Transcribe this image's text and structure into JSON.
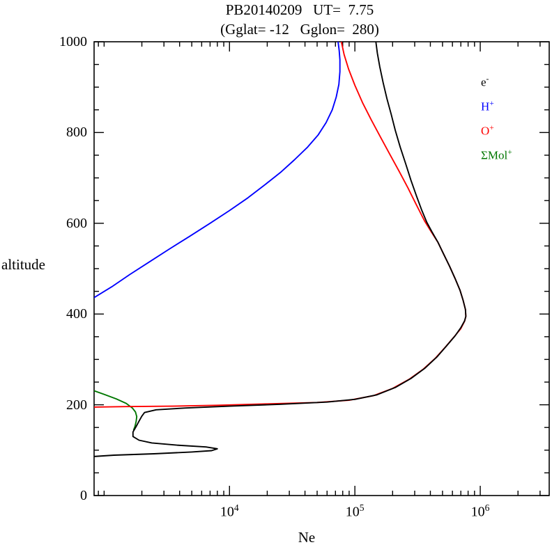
{
  "chart": {
    "title": "PB20140209   UT=  7.75",
    "subtitle": "(Gglat= -12   Gglon=  280)",
    "xlabel": "Ne",
    "ylabel": "altitude"
  },
  "legend": {
    "items": [
      {
        "name": "electron",
        "base": "e",
        "sup": "-",
        "color": "#000000"
      },
      {
        "name": "h-plus",
        "base": "H",
        "sup": "+",
        "color": "#0000ff"
      },
      {
        "name": "o-plus",
        "base": "O",
        "sup": "+",
        "color": "#ff0000"
      },
      {
        "name": "mol-plus",
        "base": "ΣMol",
        "sup": "+",
        "color": "#007700"
      }
    ]
  },
  "chart_data": {
    "type": "line",
    "x_scale": "log",
    "title": "PB20140209  UT= 7.75",
    "subtitle": "(Gglat= -12  Gglon= 280)",
    "xlabel": "Ne",
    "ylabel": "altitude",
    "xlog_range": [
      2.92,
      6.55
    ],
    "ylim": [
      0,
      1000
    ],
    "grid": false,
    "legend_position": "upper right inside",
    "x_major_ticks": [
      {
        "value": 10000,
        "base": "10",
        "sup": "4"
      },
      {
        "value": 100000,
        "base": "10",
        "sup": "5"
      },
      {
        "value": 1000000,
        "base": "10",
        "sup": "6"
      }
    ],
    "y_major_ticks": [
      0,
      200,
      400,
      600,
      800,
      1000
    ],
    "series": [
      {
        "name": "sum-molecular-ions",
        "label": "ΣMol+",
        "color": "#007700",
        "points": [
          [
            830,
            231
          ],
          [
            1000,
            223
          ],
          [
            1250,
            213
          ],
          [
            1500,
            203
          ],
          [
            1680,
            193
          ],
          [
            1780,
            184
          ],
          [
            1820,
            174
          ],
          [
            1800,
            163
          ],
          [
            1760,
            152
          ],
          [
            1720,
            145
          ]
        ]
      },
      {
        "name": "h-plus",
        "label": "H+",
        "color": "#0000ff",
        "points": [
          [
            830,
            436
          ],
          [
            1150,
            460
          ],
          [
            1600,
            487
          ],
          [
            2300,
            515
          ],
          [
            3300,
            543
          ],
          [
            4800,
            571
          ],
          [
            7000,
            600
          ],
          [
            10000,
            628
          ],
          [
            14000,
            656
          ],
          [
            19000,
            684
          ],
          [
            25500,
            712
          ],
          [
            33000,
            740
          ],
          [
            42000,
            768
          ],
          [
            51000,
            795
          ],
          [
            59000,
            822
          ],
          [
            66000,
            850
          ],
          [
            71000,
            878
          ],
          [
            74500,
            906
          ],
          [
            76000,
            934
          ],
          [
            76000,
            960
          ],
          [
            75000,
            980
          ],
          [
            73500,
            1000
          ]
        ]
      },
      {
        "name": "o-plus",
        "label": "O+",
        "color": "#ff0000",
        "points": [
          [
            830,
            195
          ],
          [
            1500,
            196
          ],
          [
            3500,
            197
          ],
          [
            8000,
            199
          ],
          [
            20000,
            202
          ],
          [
            50000,
            205
          ],
          [
            90000,
            210
          ],
          [
            140000,
            220
          ],
          [
            200000,
            236
          ],
          [
            270000,
            256
          ],
          [
            350000,
            278
          ],
          [
            440000,
            303
          ],
          [
            530000,
            328
          ],
          [
            620000,
            350
          ],
          [
            700000,
            368
          ],
          [
            750000,
            384
          ],
          [
            768000,
            395
          ],
          [
            762000,
            410
          ],
          [
            730000,
            430
          ],
          [
            690000,
            452
          ],
          [
            630000,
            478
          ],
          [
            570000,
            505
          ],
          [
            510000,
            532
          ],
          [
            460000,
            558
          ],
          [
            405000,
            582
          ],
          [
            360000,
            605
          ],
          [
            310000,
            640
          ],
          [
            265000,
            678
          ],
          [
            225000,
            715
          ],
          [
            190000,
            752
          ],
          [
            160000,
            790
          ],
          [
            135000,
            828
          ],
          [
            115000,
            866
          ],
          [
            100000,
            904
          ],
          [
            89000,
            940
          ],
          [
            82000,
            972
          ],
          [
            78000,
            1000
          ]
        ]
      },
      {
        "name": "electron-density",
        "label": "e-",
        "color": "#000000",
        "points": [
          [
            830,
            86
          ],
          [
            1200,
            89
          ],
          [
            2500,
            92
          ],
          [
            5000,
            96
          ],
          [
            7200,
            99
          ],
          [
            8000,
            103
          ],
          [
            6500,
            107
          ],
          [
            3800,
            111
          ],
          [
            2400,
            116
          ],
          [
            1900,
            122
          ],
          [
            1700,
            130
          ],
          [
            1700,
            140
          ],
          [
            1800,
            152
          ],
          [
            1900,
            164
          ],
          [
            2000,
            175
          ],
          [
            2100,
            183
          ],
          [
            2600,
            189
          ],
          [
            4500,
            193
          ],
          [
            10000,
            197
          ],
          [
            25000,
            201
          ],
          [
            60000,
            206
          ],
          [
            100000,
            212
          ],
          [
            150000,
            222
          ],
          [
            210000,
            238
          ],
          [
            280000,
            258
          ],
          [
            360000,
            280
          ],
          [
            450000,
            305
          ],
          [
            540000,
            330
          ],
          [
            630000,
            352
          ],
          [
            700000,
            370
          ],
          [
            750000,
            385
          ],
          [
            768000,
            395
          ],
          [
            762000,
            410
          ],
          [
            730000,
            430
          ],
          [
            690000,
            452
          ],
          [
            630000,
            478
          ],
          [
            570000,
            505
          ],
          [
            510000,
            532
          ],
          [
            460000,
            558
          ],
          [
            410000,
            582
          ],
          [
            375000,
            602
          ],
          [
            340000,
            630
          ],
          [
            310000,
            660
          ],
          [
            280000,
            695
          ],
          [
            255000,
            730
          ],
          [
            230000,
            768
          ],
          [
            210000,
            805
          ],
          [
            195000,
            840
          ],
          [
            180000,
            875
          ],
          [
            168000,
            910
          ],
          [
            158000,
            945
          ],
          [
            151000,
            975
          ],
          [
            147000,
            1000
          ]
        ]
      }
    ]
  }
}
